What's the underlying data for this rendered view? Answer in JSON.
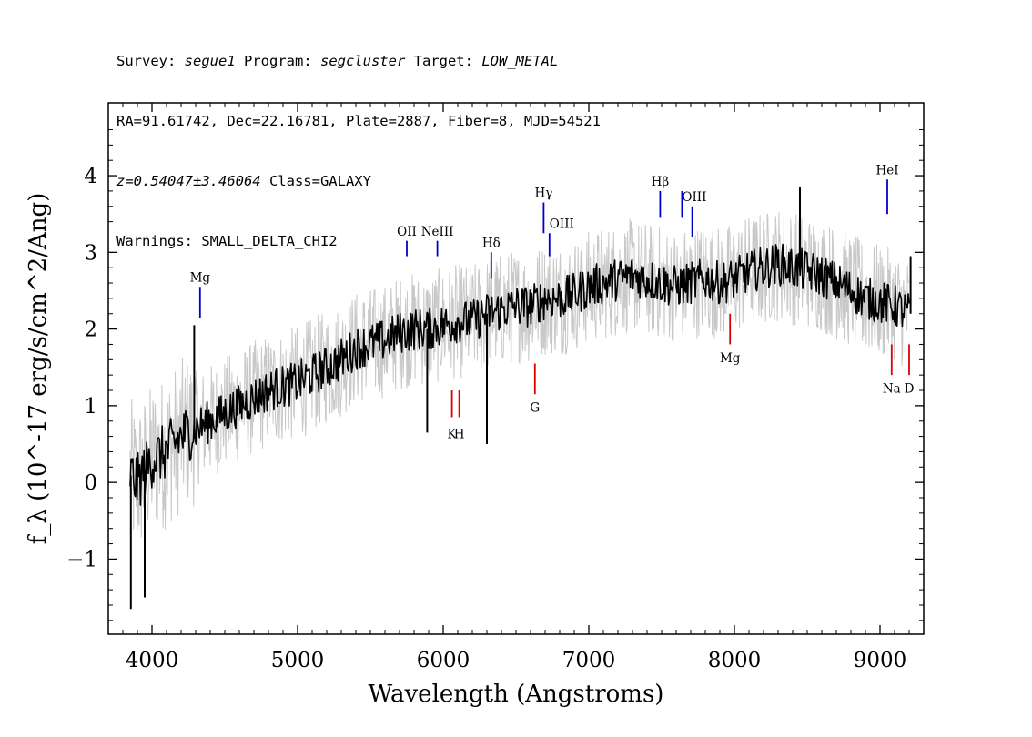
{
  "header": {
    "line1": {
      "survey_label": "Survey: ",
      "survey": "segue1",
      "program_label": " Program: ",
      "program": "segcluster",
      "target_label": " Target: ",
      "target": "LOW_METAL"
    },
    "line2": "RA=91.61742, Dec=22.16781, Plate=2887, Fiber=8, MJD=54521",
    "line3": {
      "z": "z=0.54047±3.46064",
      "class": " Class=GALAXY"
    },
    "line4": "Warnings: SMALL_DELTA_CHI2"
  },
  "chart_data": {
    "type": "line",
    "xlabel": "Wavelength (Angstroms)",
    "ylabel": "f_λ (10^-17 erg/s/cm^2/Ang)",
    "xlim": [
      3700,
      9300
    ],
    "ylim": [
      -1.98,
      4.95
    ],
    "xticks": [
      4000,
      5000,
      6000,
      7000,
      8000,
      9000
    ],
    "yticks": [
      -1,
      0,
      1,
      2,
      3,
      4
    ],
    "series": [
      {
        "color": "#c8c8c8",
        "x": [
          3850,
          3900,
          4000,
          4100,
          4200,
          4300,
          4400,
          4500,
          4600,
          4700,
          4800,
          4900,
          5000,
          5100,
          5200,
          5300,
          5400,
          5500,
          5600,
          5700,
          5800,
          5900,
          6000,
          6100,
          6200,
          6300,
          6400,
          6500,
          6600,
          6700,
          6800,
          6900,
          7000,
          7100,
          7200,
          7300,
          7400,
          7500,
          7600,
          7700,
          7800,
          7900,
          8000,
          8100,
          8200,
          8300,
          8400,
          8500,
          8600,
          8700,
          8800,
          8900,
          9000,
          9100,
          9200
        ],
        "y": [
          0.1,
          0.0,
          0.3,
          0.4,
          0.6,
          0.7,
          0.8,
          0.9,
          1.0,
          1.1,
          1.2,
          1.25,
          1.3,
          1.4,
          1.5,
          1.6,
          1.75,
          1.8,
          1.85,
          1.95,
          2.0,
          2.0,
          2.05,
          2.1,
          2.1,
          2.2,
          2.25,
          2.3,
          2.3,
          2.4,
          2.4,
          2.45,
          2.55,
          2.6,
          2.65,
          2.7,
          2.65,
          2.6,
          2.55,
          2.6,
          2.65,
          2.6,
          2.65,
          2.75,
          2.8,
          2.85,
          2.8,
          2.75,
          2.7,
          2.6,
          2.5,
          2.4,
          2.35,
          2.3,
          2.2
        ],
        "noise": 0.75
      },
      {
        "color": "#000000",
        "x": [
          3850,
          3900,
          4000,
          4100,
          4200,
          4300,
          4400,
          4500,
          4600,
          4700,
          4800,
          4900,
          5000,
          5100,
          5200,
          5300,
          5400,
          5500,
          5600,
          5700,
          5800,
          5900,
          6000,
          6100,
          6200,
          6300,
          6400,
          6500,
          6600,
          6700,
          6800,
          6900,
          7000,
          7100,
          7200,
          7300,
          7400,
          7500,
          7600,
          7700,
          7800,
          7900,
          8000,
          8100,
          8200,
          8300,
          8400,
          8500,
          8600,
          8700,
          8800,
          8900,
          9000,
          9100,
          9200
        ],
        "y": [
          0.1,
          0.0,
          0.3,
          0.4,
          0.6,
          0.7,
          0.8,
          0.9,
          1.0,
          1.1,
          1.2,
          1.25,
          1.3,
          1.4,
          1.5,
          1.6,
          1.75,
          1.8,
          1.85,
          1.95,
          2.0,
          2.0,
          2.05,
          2.1,
          2.1,
          2.2,
          2.25,
          2.3,
          2.3,
          2.4,
          2.4,
          2.45,
          2.55,
          2.6,
          2.65,
          2.7,
          2.65,
          2.6,
          2.55,
          2.6,
          2.65,
          2.6,
          2.65,
          2.75,
          2.8,
          2.85,
          2.8,
          2.75,
          2.7,
          2.6,
          2.5,
          2.4,
          2.35,
          2.3,
          2.2
        ],
        "noise": 0.28
      }
    ],
    "spikes": [
      {
        "x": 3855,
        "y": -1.65
      },
      {
        "x": 3950,
        "y": -1.5
      },
      {
        "x": 4290,
        "y": 2.05
      },
      {
        "x": 5890,
        "y": 0.65
      },
      {
        "x": 6300,
        "y": 0.5
      },
      {
        "x": 8450,
        "y": 3.85
      },
      {
        "x": 9210,
        "y": 2.95
      }
    ],
    "line_markers": [
      {
        "label": "Mg",
        "x": 4330,
        "color": "#0000cc",
        "y0": 2.15,
        "y1": 2.55,
        "label_y": 2.62,
        "anchor": "middle"
      },
      {
        "label": "OII",
        "x": 5750,
        "color": "#0000cc",
        "y0": 2.95,
        "y1": 3.15,
        "label_y": 3.22,
        "anchor": "middle"
      },
      {
        "label": "NeIII",
        "x": 5960,
        "color": "#0000cc",
        "y0": 2.95,
        "y1": 3.15,
        "label_y": 3.22,
        "anchor": "middle"
      },
      {
        "label": "Hδ",
        "x": 6330,
        "color": "#0000cc",
        "y0": 2.65,
        "y1": 3.0,
        "label_y": 3.07,
        "anchor": "middle"
      },
      {
        "label": "Hγ",
        "x": 6690,
        "color": "#0000cc",
        "y0": 3.25,
        "y1": 3.65,
        "label_y": 3.72,
        "anchor": "middle"
      },
      {
        "label": "OIII",
        "x": 6730,
        "color": "#0000cc",
        "y0": 2.95,
        "y1": 3.25,
        "label_y": 3.32,
        "anchor": "start"
      },
      {
        "label": "Hβ",
        "x": 7490,
        "color": "#0000cc",
        "y0": 3.45,
        "y1": 3.8,
        "label_y": 3.87,
        "anchor": "middle"
      },
      {
        "label": "OIII",
        "x": 7640,
        "color": "#0000cc",
        "y0": 3.45,
        "y1": 3.8,
        "label_y": 3.67,
        "anchor": "start"
      },
      {
        "label": "",
        "x": 7710,
        "color": "#0000cc",
        "y0": 3.2,
        "y1": 3.6,
        "label_y": 3.6,
        "anchor": "start"
      },
      {
        "label": "HeI",
        "x": 9050,
        "color": "#0000cc",
        "y0": 3.5,
        "y1": 3.95,
        "label_y": 4.02,
        "anchor": "middle"
      },
      {
        "label": "K",
        "x": 6060,
        "color": "#dd0000",
        "y0": 0.85,
        "y1": 1.2,
        "label_y": 0.58,
        "anchor": "middle"
      },
      {
        "label": "H",
        "x": 6110,
        "color": "#dd0000",
        "y0": 0.85,
        "y1": 1.2,
        "label_y": 0.58,
        "anchor": "middle"
      },
      {
        "label": "G",
        "x": 6630,
        "color": "#dd0000",
        "y0": 1.15,
        "y1": 1.55,
        "label_y": 0.92,
        "anchor": "middle"
      },
      {
        "label": "Mg",
        "x": 7970,
        "color": "#dd0000",
        "y0": 1.8,
        "y1": 2.2,
        "label_y": 1.57,
        "anchor": "middle"
      },
      {
        "label": "Na",
        "x": 9080,
        "color": "#dd0000",
        "y0": 1.4,
        "y1": 1.8,
        "label_y": 1.17,
        "anchor": "middle"
      },
      {
        "label": "D",
        "x": 9200,
        "color": "#dd0000",
        "y0": 1.4,
        "y1": 1.8,
        "label_y": 1.17,
        "anchor": "middle"
      }
    ]
  }
}
